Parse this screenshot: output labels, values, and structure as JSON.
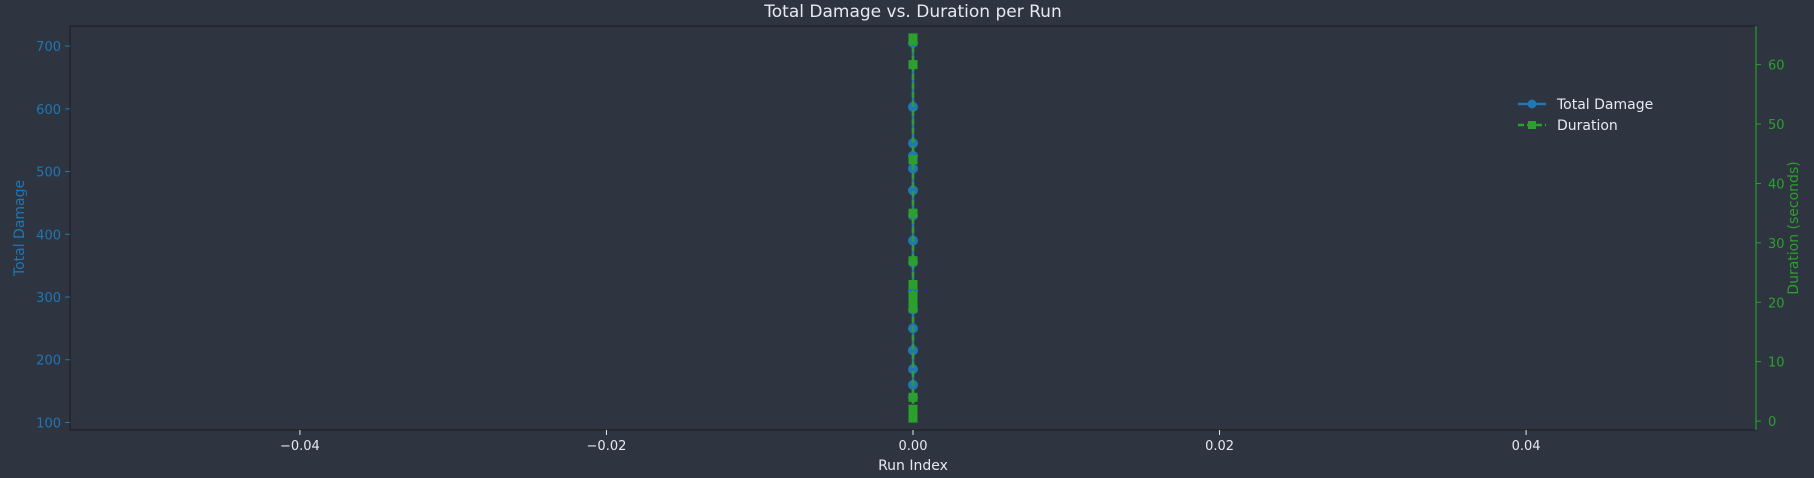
{
  "chart_data": {
    "type": "line",
    "title": "Total Damage vs. Duration per Run",
    "xlabel": "Run Index",
    "xlim": [
      -0.055,
      0.055
    ],
    "x_ticks": [
      -0.04,
      -0.02,
      0.0,
      0.02,
      0.04
    ],
    "x_tick_labels": [
      "−0.04",
      "−0.02",
      "0.00",
      "0.02",
      "0.04"
    ],
    "left_axis": {
      "label": "Total Damage",
      "ylim": [
        88,
        732
      ],
      "ticks": [
        100,
        200,
        300,
        400,
        500,
        600,
        700
      ],
      "color": "#1f77b4"
    },
    "right_axis": {
      "label": "Duration (seconds)",
      "ylim": [
        -1.5,
        66.5
      ],
      "ticks": [
        0,
        10,
        20,
        30,
        40,
        50,
        60
      ],
      "color": "#2ca02c"
    },
    "series": [
      {
        "name": "Total Damage",
        "axis": "left",
        "marker": "circle",
        "color": "#1f77b4",
        "x": [
          0,
          0,
          0,
          0,
          0,
          0,
          0,
          0,
          0,
          0,
          0,
          0,
          0,
          0,
          0,
          0
        ],
        "values": [
          705,
          603,
          545,
          525,
          505,
          470,
          430,
          390,
          355,
          310,
          280,
          250,
          215,
          185,
          160,
          140
        ]
      },
      {
        "name": "Duration",
        "axis": "right",
        "marker": "square",
        "color": "#2ca02c",
        "x": [
          0,
          0,
          0,
          0,
          0,
          0,
          0,
          0,
          0,
          0,
          0,
          0,
          0,
          0
        ],
        "values": [
          64.5,
          64,
          60,
          44,
          35,
          27,
          23,
          21,
          20,
          19,
          4,
          2,
          1,
          0.5
        ]
      }
    ],
    "legend": {
      "placement": "upper-right",
      "entries": [
        "Total Damage",
        "Duration"
      ]
    },
    "grid": false
  }
}
